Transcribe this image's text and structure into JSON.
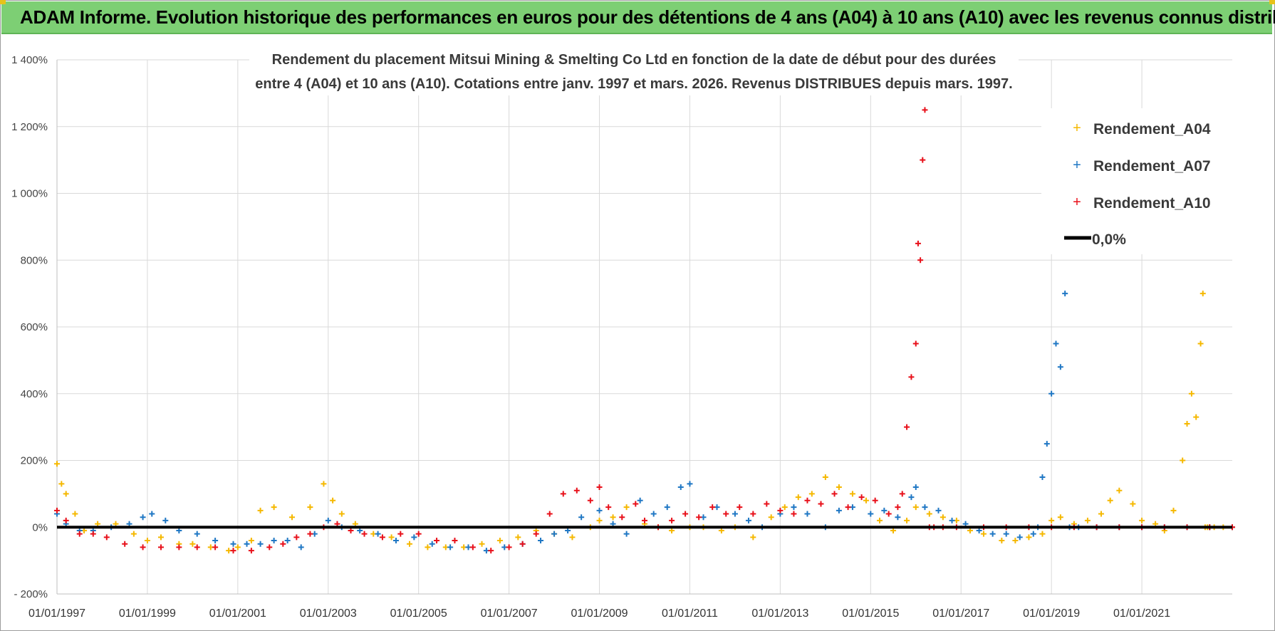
{
  "header": {
    "title": "ADAM Informe. Evolution historique des performances en euros pour des détentions de 4 ans (A04) à 10 ans (A10) avec les revenus connus distribués"
  },
  "colors": {
    "banner": "#7dcf74",
    "a04": "#f5b800",
    "a07": "#1f77c4",
    "a10": "#e8101a",
    "zero": "#000000",
    "grid": "#d9d9d9"
  },
  "chart_data": {
    "type": "scatter",
    "title_lines": [
      "Rendement du placement Mitsui Mining & Smelting Co Ltd en fonction de la date de début pour des durées",
      "entre 4 (A04) et 10 ans (A10).  Cotations entre janv. 1997 et mars. 2026. Revenus DISTRIBUES depuis mars. 1997."
    ],
    "xlabel": "",
    "ylabel": "",
    "x_unit": "year (decimal)",
    "xlim": [
      1997.0,
      2023.0
    ],
    "ylim": [
      -200,
      1400
    ],
    "y_ticks": [
      -200,
      0,
      200,
      400,
      600,
      800,
      1000,
      1200,
      1400
    ],
    "y_tick_labels": [
      "- 200%",
      "0%",
      "200%",
      "400%",
      "600%",
      "800%",
      "1 000%",
      "1 200%",
      "1 400%"
    ],
    "x_ticks": [
      1997,
      1999,
      2001,
      2003,
      2005,
      2007,
      2009,
      2011,
      2013,
      2015,
      2017,
      2019,
      2021
    ],
    "x_tick_labels": [
      "01/01/1997",
      "01/01/1999",
      "01/01/2001",
      "01/01/2003",
      "01/01/2005",
      "01/01/2007",
      "01/01/2009",
      "01/01/2011",
      "01/01/2013",
      "01/01/2015",
      "01/01/2017",
      "01/01/2019",
      "01/01/2021"
    ],
    "grid": true,
    "legend_position": "top-right",
    "series": [
      {
        "name": "Rendement_A04",
        "marker": "+",
        "x": [
          1997.0,
          1997.1,
          1997.2,
          1997.4,
          1997.6,
          1997.9,
          1998.3,
          1998.7,
          1999.0,
          1999.3,
          1999.7,
          2000.0,
          2000.4,
          2000.8,
          2001.0,
          2001.3,
          2001.5,
          2001.8,
          2002.2,
          2002.6,
          2002.9,
          2003.1,
          2003.3,
          2003.6,
          2004.0,
          2004.4,
          2004.8,
          2005.2,
          2005.6,
          2006.0,
          2006.4,
          2006.8,
          2007.2,
          2007.6,
          2008.0,
          2008.4,
          2008.8,
          2009.0,
          2009.3,
          2009.6,
          2010.0,
          2010.3,
          2010.6,
          2011.0,
          2011.3,
          2011.7,
          2012.0,
          2012.4,
          2012.8,
          2013.1,
          2013.4,
          2013.7,
          2014.0,
          2014.3,
          2014.6,
          2014.9,
          2015.2,
          2015.5,
          2015.8,
          2016.0,
          2016.3,
          2016.6,
          2016.9,
          2017.2,
          2017.5,
          2017.9,
          2018.2,
          2018.5,
          2018.8,
          2019.0,
          2019.2,
          2019.5,
          2019.8,
          2020.1,
          2020.3,
          2020.5,
          2020.8,
          2021.0,
          2021.3,
          2021.5,
          2021.7,
          2021.9,
          2022.0,
          2022.1,
          2022.2,
          2022.3,
          2022.35,
          2022.4,
          2022.45,
          2022.5,
          2022.6,
          2022.8,
          2023.0
        ],
        "values": [
          190,
          130,
          100,
          40,
          -10,
          10,
          10,
          -20,
          -40,
          -30,
          -50,
          -50,
          -60,
          -70,
          -60,
          -40,
          50,
          60,
          30,
          60,
          130,
          80,
          40,
          10,
          -20,
          -30,
          -50,
          -60,
          -60,
          -60,
          -50,
          -40,
          -30,
          -10,
          -20,
          -30,
          0,
          20,
          30,
          60,
          10,
          0,
          -10,
          0,
          0,
          -10,
          0,
          -30,
          30,
          60,
          90,
          100,
          150,
          120,
          100,
          80,
          20,
          -10,
          20,
          60,
          40,
          30,
          20,
          -10,
          -20,
          -40,
          -40,
          -30,
          -20,
          20,
          30,
          10,
          20,
          40,
          80,
          110,
          70,
          20,
          10,
          -10,
          50,
          200,
          310,
          400,
          330,
          550,
          700,
          0,
          0,
          0,
          0,
          0,
          0
        ]
      },
      {
        "name": "Rendement_A07",
        "marker": "+",
        "x": [
          1997.0,
          1997.2,
          1997.5,
          1997.8,
          1998.2,
          1998.6,
          1998.9,
          1999.1,
          1999.4,
          1999.7,
          2000.1,
          2000.5,
          2000.9,
          2001.2,
          2001.5,
          2001.8,
          2002.1,
          2002.4,
          2002.7,
          2003.0,
          2003.3,
          2003.7,
          2004.1,
          2004.5,
          2004.9,
          2005.3,
          2005.7,
          2006.1,
          2006.5,
          2006.9,
          2007.3,
          2007.7,
          2008.0,
          2008.3,
          2008.6,
          2009.0,
          2009.3,
          2009.6,
          2009.9,
          2010.2,
          2010.5,
          2010.8,
          2011.0,
          2011.3,
          2011.6,
          2012.0,
          2012.3,
          2012.6,
          2013.0,
          2013.3,
          2013.6,
          2014.0,
          2014.3,
          2014.6,
          2015.0,
          2015.3,
          2015.6,
          2015.9,
          2016.0,
          2016.2,
          2016.5,
          2016.8,
          2017.1,
          2017.4,
          2017.7,
          2018.0,
          2018.3,
          2018.6,
          2018.7,
          2018.8,
          2018.9,
          2019.0,
          2019.1,
          2019.2,
          2019.3,
          2019.4,
          2019.6,
          2020.0,
          2020.5,
          2021.0,
          2021.5,
          2022.0,
          2022.5,
          2023.0
        ],
        "values": [
          40,
          10,
          -10,
          -10,
          0,
          10,
          30,
          40,
          20,
          -10,
          -20,
          -40,
          -50,
          -50,
          -50,
          -40,
          -40,
          -60,
          -20,
          20,
          0,
          -10,
          -20,
          -40,
          -30,
          -50,
          -60,
          -60,
          -70,
          -60,
          -50,
          -40,
          -20,
          -10,
          30,
          50,
          10,
          -20,
          80,
          40,
          60,
          120,
          130,
          30,
          60,
          40,
          20,
          0,
          40,
          60,
          40,
          0,
          50,
          60,
          40,
          50,
          30,
          90,
          120,
          60,
          50,
          20,
          10,
          -10,
          -20,
          -20,
          -30,
          -20,
          0,
          150,
          250,
          400,
          550,
          480,
          700,
          0,
          0,
          0,
          0,
          0,
          0,
          0,
          0,
          0
        ]
      },
      {
        "name": "Rendement_A10",
        "marker": "+",
        "x": [
          1997.0,
          1997.2,
          1997.5,
          1997.8,
          1998.1,
          1998.5,
          1998.9,
          1999.3,
          1999.7,
          2000.1,
          2000.5,
          2000.9,
          2001.3,
          2001.7,
          2002.0,
          2002.3,
          2002.6,
          2002.9,
          2003.2,
          2003.5,
          2003.8,
          2004.2,
          2004.6,
          2005.0,
          2005.4,
          2005.8,
          2006.2,
          2006.6,
          2007.0,
          2007.3,
          2007.6,
          2007.9,
          2008.2,
          2008.5,
          2008.8,
          2009.0,
          2009.2,
          2009.5,
          2009.8,
          2010.0,
          2010.3,
          2010.6,
          2010.9,
          2011.2,
          2011.5,
          2011.8,
          2012.1,
          2012.4,
          2012.7,
          2013.0,
          2013.3,
          2013.6,
          2013.9,
          2014.2,
          2014.5,
          2014.8,
          2015.1,
          2015.4,
          2015.6,
          2015.7,
          2015.8,
          2015.9,
          2016.0,
          2016.05,
          2016.1,
          2016.15,
          2016.2,
          2016.3,
          2016.4,
          2016.6,
          2016.9,
          2017.5,
          2018.0,
          2018.5,
          2019.0,
          2019.5,
          2020.0,
          2020.5,
          2021.0,
          2021.5,
          2022.0,
          2022.5,
          2023.0
        ],
        "values": [
          50,
          20,
          -20,
          -20,
          -30,
          -50,
          -60,
          -60,
          -60,
          -60,
          -60,
          -70,
          -70,
          -60,
          -50,
          -30,
          -20,
          0,
          10,
          -10,
          -20,
          -30,
          -20,
          -20,
          -40,
          -40,
          -60,
          -70,
          -60,
          -50,
          -20,
          40,
          100,
          110,
          80,
          120,
          60,
          30,
          70,
          20,
          0,
          20,
          40,
          30,
          60,
          40,
          60,
          40,
          70,
          50,
          40,
          80,
          70,
          100,
          60,
          90,
          80,
          40,
          60,
          100,
          300,
          450,
          550,
          850,
          800,
          1100,
          1250,
          0,
          0,
          0,
          0,
          0,
          0,
          0,
          0,
          0,
          0,
          0,
          0,
          0,
          0,
          0,
          0
        ]
      }
    ],
    "reference_line": {
      "name": "0,0%",
      "value": 0
    }
  }
}
